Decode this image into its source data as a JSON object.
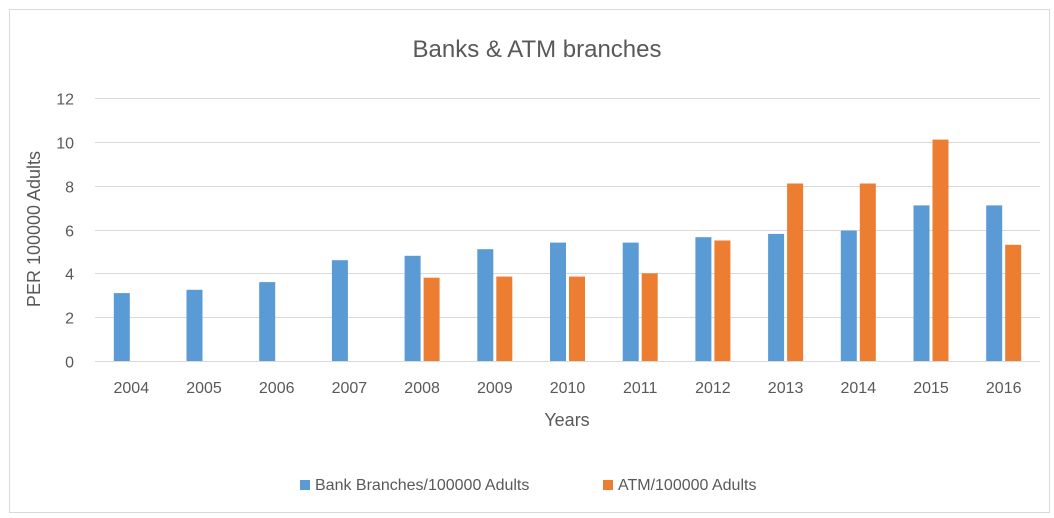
{
  "chart_data": {
    "type": "bar",
    "title": "Banks & ATM branches",
    "xlabel": "Years",
    "ylabel": "PER 100000 Adults",
    "ylim": [
      0,
      12
    ],
    "yticks": [
      0,
      2,
      4,
      6,
      8,
      10,
      12
    ],
    "grid": true,
    "legend_position": "bottom",
    "categories": [
      "2004",
      "2005",
      "2006",
      "2007",
      "2008",
      "2009",
      "2010",
      "2011",
      "2012",
      "2013",
      "2014",
      "2015",
      "2016"
    ],
    "series": [
      {
        "name": "Bank Branches/100000 Adults",
        "color": "#5b9bd5",
        "values": [
          3.1,
          3.25,
          3.6,
          4.6,
          4.8,
          5.1,
          5.4,
          5.4,
          5.65,
          5.8,
          5.95,
          7.1,
          7.1
        ]
      },
      {
        "name": "ATM/100000 Adults",
        "color": "#ed7d31",
        "values": [
          null,
          null,
          null,
          null,
          3.8,
          3.85,
          3.85,
          4.0,
          5.5,
          8.1,
          8.1,
          10.1,
          5.3
        ]
      }
    ]
  }
}
